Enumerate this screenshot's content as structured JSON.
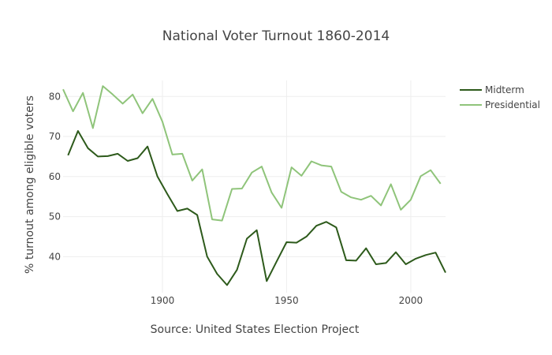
{
  "chart_data": {
    "type": "line",
    "title": "National Voter Turnout 1860-2014",
    "xlabel": "Source: United States Election Project",
    "ylabel": "% turnout among eligible voters",
    "xlim": [
      1860,
      2014
    ],
    "ylim": [
      31,
      84
    ],
    "xticks": [
      1900,
      1950,
      2000
    ],
    "yticks": [
      40,
      50,
      60,
      70,
      80
    ],
    "grid": true,
    "legend_position": "top-right",
    "series": [
      {
        "name": "Midterm",
        "color": "#2d5a1b",
        "x": [
          1862,
          1866,
          1870,
          1874,
          1878,
          1882,
          1886,
          1890,
          1894,
          1898,
          1902,
          1906,
          1910,
          1914,
          1918,
          1922,
          1926,
          1930,
          1934,
          1938,
          1942,
          1946,
          1950,
          1954,
          1958,
          1962,
          1966,
          1970,
          1974,
          1978,
          1982,
          1986,
          1990,
          1994,
          1998,
          2002,
          2006,
          2010,
          2014
        ],
        "values": [
          65.3,
          71.4,
          67.1,
          65.0,
          65.1,
          65.7,
          63.9,
          64.6,
          67.5,
          60.0,
          55.6,
          51.4,
          52.0,
          50.4,
          40.0,
          35.7,
          32.9,
          36.7,
          44.5,
          46.6,
          33.9,
          38.8,
          43.6,
          43.5,
          45.0,
          47.7,
          48.7,
          47.3,
          39.1,
          39.0,
          42.1,
          38.1,
          38.4,
          41.1,
          38.1,
          39.5,
          40.4,
          41.0,
          36.0
        ]
      },
      {
        "name": "Presidential",
        "color": "#8fc47a",
        "x": [
          1860,
          1864,
          1868,
          1872,
          1876,
          1880,
          1884,
          1888,
          1892,
          1896,
          1900,
          1904,
          1908,
          1912,
          1916,
          1920,
          1924,
          1928,
          1932,
          1936,
          1940,
          1944,
          1948,
          1952,
          1956,
          1960,
          1964,
          1968,
          1972,
          1976,
          1980,
          1984,
          1988,
          1992,
          1996,
          2000,
          2004,
          2008,
          2012
        ],
        "values": [
          81.8,
          76.3,
          80.9,
          72.1,
          82.6,
          80.5,
          78.2,
          80.5,
          75.8,
          79.4,
          73.7,
          65.5,
          65.7,
          59.0,
          61.8,
          49.3,
          49.0,
          56.9,
          57.0,
          61.0,
          62.5,
          56.0,
          52.2,
          62.3,
          60.2,
          63.8,
          62.8,
          62.5,
          56.2,
          54.8,
          54.2,
          55.2,
          52.8,
          58.1,
          51.7,
          54.2,
          60.1,
          61.6,
          58.2
        ]
      }
    ]
  }
}
